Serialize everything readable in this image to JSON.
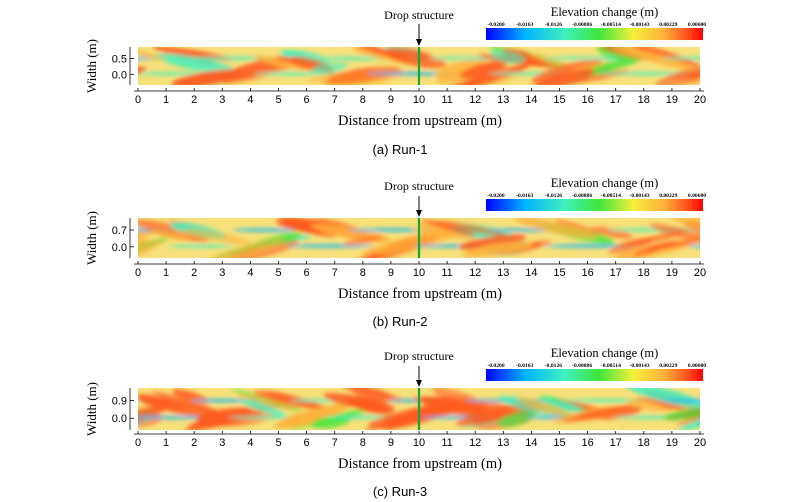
{
  "chart_data": [
    {
      "type": "heatmap",
      "title": "Elevation change (m)",
      "annotation": "Drop structure",
      "annotation_x": 10,
      "xlabel": "Distance from upstream (m)",
      "ylabel": "Width (m)",
      "caption": "(a)  Run-1",
      "xticks": [
        "0",
        "1",
        "2",
        "3",
        "4",
        "5",
        "6",
        "7",
        "8",
        "9",
        "10",
        "11",
        "12",
        "13",
        "14",
        "15",
        "16",
        "17",
        "18",
        "19",
        "20"
      ],
      "yticks": [
        "0.5",
        "0.0"
      ],
      "xlim": [
        0,
        20
      ],
      "colorbar_ticks": [
        "-0.0200",
        "-0.0163",
        "-0.0126",
        "-0.00886",
        "-0.00514",
        "-0.00143",
        "0.00229",
        "0.00600"
      ],
      "colorbar_range": [
        -0.02,
        0.006
      ],
      "bar_period_m": 4.2,
      "bar_phase_m": 0.3
    },
    {
      "type": "heatmap",
      "title": "Elevation change (m)",
      "annotation": "Drop structure",
      "annotation_x": 10,
      "xlabel": "Distance from upstream (m)",
      "ylabel": "Width (m)",
      "caption": "(b)  Run-2",
      "xticks": [
        "0",
        "1",
        "2",
        "3",
        "4",
        "5",
        "6",
        "7",
        "8",
        "9",
        "10",
        "11",
        "12",
        "13",
        "14",
        "15",
        "16",
        "17",
        "18",
        "19",
        "20"
      ],
      "yticks": [
        "0.7",
        "0.0"
      ],
      "xlim": [
        0,
        20
      ],
      "colorbar_ticks": [
        "-0.0200",
        "-0.0163",
        "-0.0126",
        "-0.00886",
        "-0.00514",
        "-0.00143",
        "0.00229",
        "0.00600"
      ],
      "colorbar_range": [
        -0.02,
        0.006
      ],
      "bar_period_m": 4.6,
      "bar_phase_m": 1.1
    },
    {
      "type": "heatmap",
      "title": "Elevation change (m)",
      "annotation": "Drop structure",
      "annotation_x": 10,
      "xlabel": "Distance from upstream (m)",
      "ylabel": "Width (m)",
      "caption": "(c)  Run-3",
      "xticks": [
        "0",
        "1",
        "2",
        "3",
        "4",
        "5",
        "6",
        "7",
        "8",
        "9",
        "10",
        "11",
        "12",
        "13",
        "14",
        "15",
        "16",
        "17",
        "18",
        "19",
        "20"
      ],
      "yticks": [
        "0.9",
        "0.0"
      ],
      "xlim": [
        0,
        20
      ],
      "colorbar_ticks": [
        "-0.0200",
        "-0.0163",
        "-0.0126",
        "-0.00886",
        "-0.00514",
        "-0.00143",
        "0.00229",
        "0.00600"
      ],
      "colorbar_range": [
        -0.02,
        0.006
      ],
      "bar_period_m": 3.4,
      "bar_phase_m": 0.6
    }
  ],
  "colors": {
    "background_field": "#f7e17a",
    "drop_line": "#18a43a",
    "colormap": [
      "#0000ff",
      "#00b4ff",
      "#3ff0c0",
      "#3ee63c",
      "#f4f03a",
      "#ffb13a",
      "#ff5a1e",
      "#ff0000"
    ]
  }
}
